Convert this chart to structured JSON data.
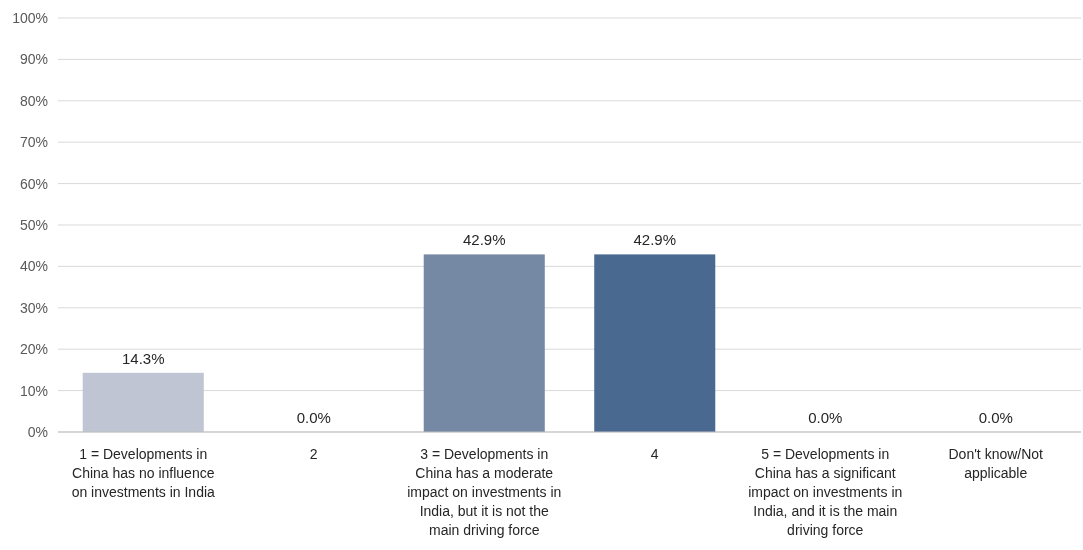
{
  "chart_data": {
    "type": "bar",
    "categories": [
      "1 = Developments in China has no influence on investments in India",
      "2",
      "3 = Developments in China has a moderate impact on investments in India, but it is not the main driving force",
      "4",
      "5 = Developments in China has a significant impact on investments in India, and it is the main driving force",
      "Don't know/Not applicable"
    ],
    "values": [
      14.3,
      0,
      42.9,
      42.9,
      0,
      0
    ],
    "colors": [
      "#bfc5d2",
      "#bfc5d2",
      "#7588a4",
      "#4a6990",
      "#4a6990",
      "#4a6990"
    ],
    "value_labels": [
      "14.3%",
      "0.0%",
      "42.9%",
      "42.9%",
      "0.0%",
      "0.0%"
    ],
    "ylim": [
      0,
      100
    ],
    "yticks": [
      {
        "value": 0,
        "label": "0%"
      },
      {
        "value": 10,
        "label": "10%"
      },
      {
        "value": 20,
        "label": "20%"
      },
      {
        "value": 30,
        "label": "30%"
      },
      {
        "value": 40,
        "label": "40%"
      },
      {
        "value": 50,
        "label": "50%"
      },
      {
        "value": 60,
        "label": "60%"
      },
      {
        "value": 70,
        "label": "70%"
      },
      {
        "value": 80,
        "label": "80%"
      },
      {
        "value": 90,
        "label": "90%"
      },
      {
        "value": 100,
        "label": "100%"
      }
    ],
    "grid": "y"
  }
}
